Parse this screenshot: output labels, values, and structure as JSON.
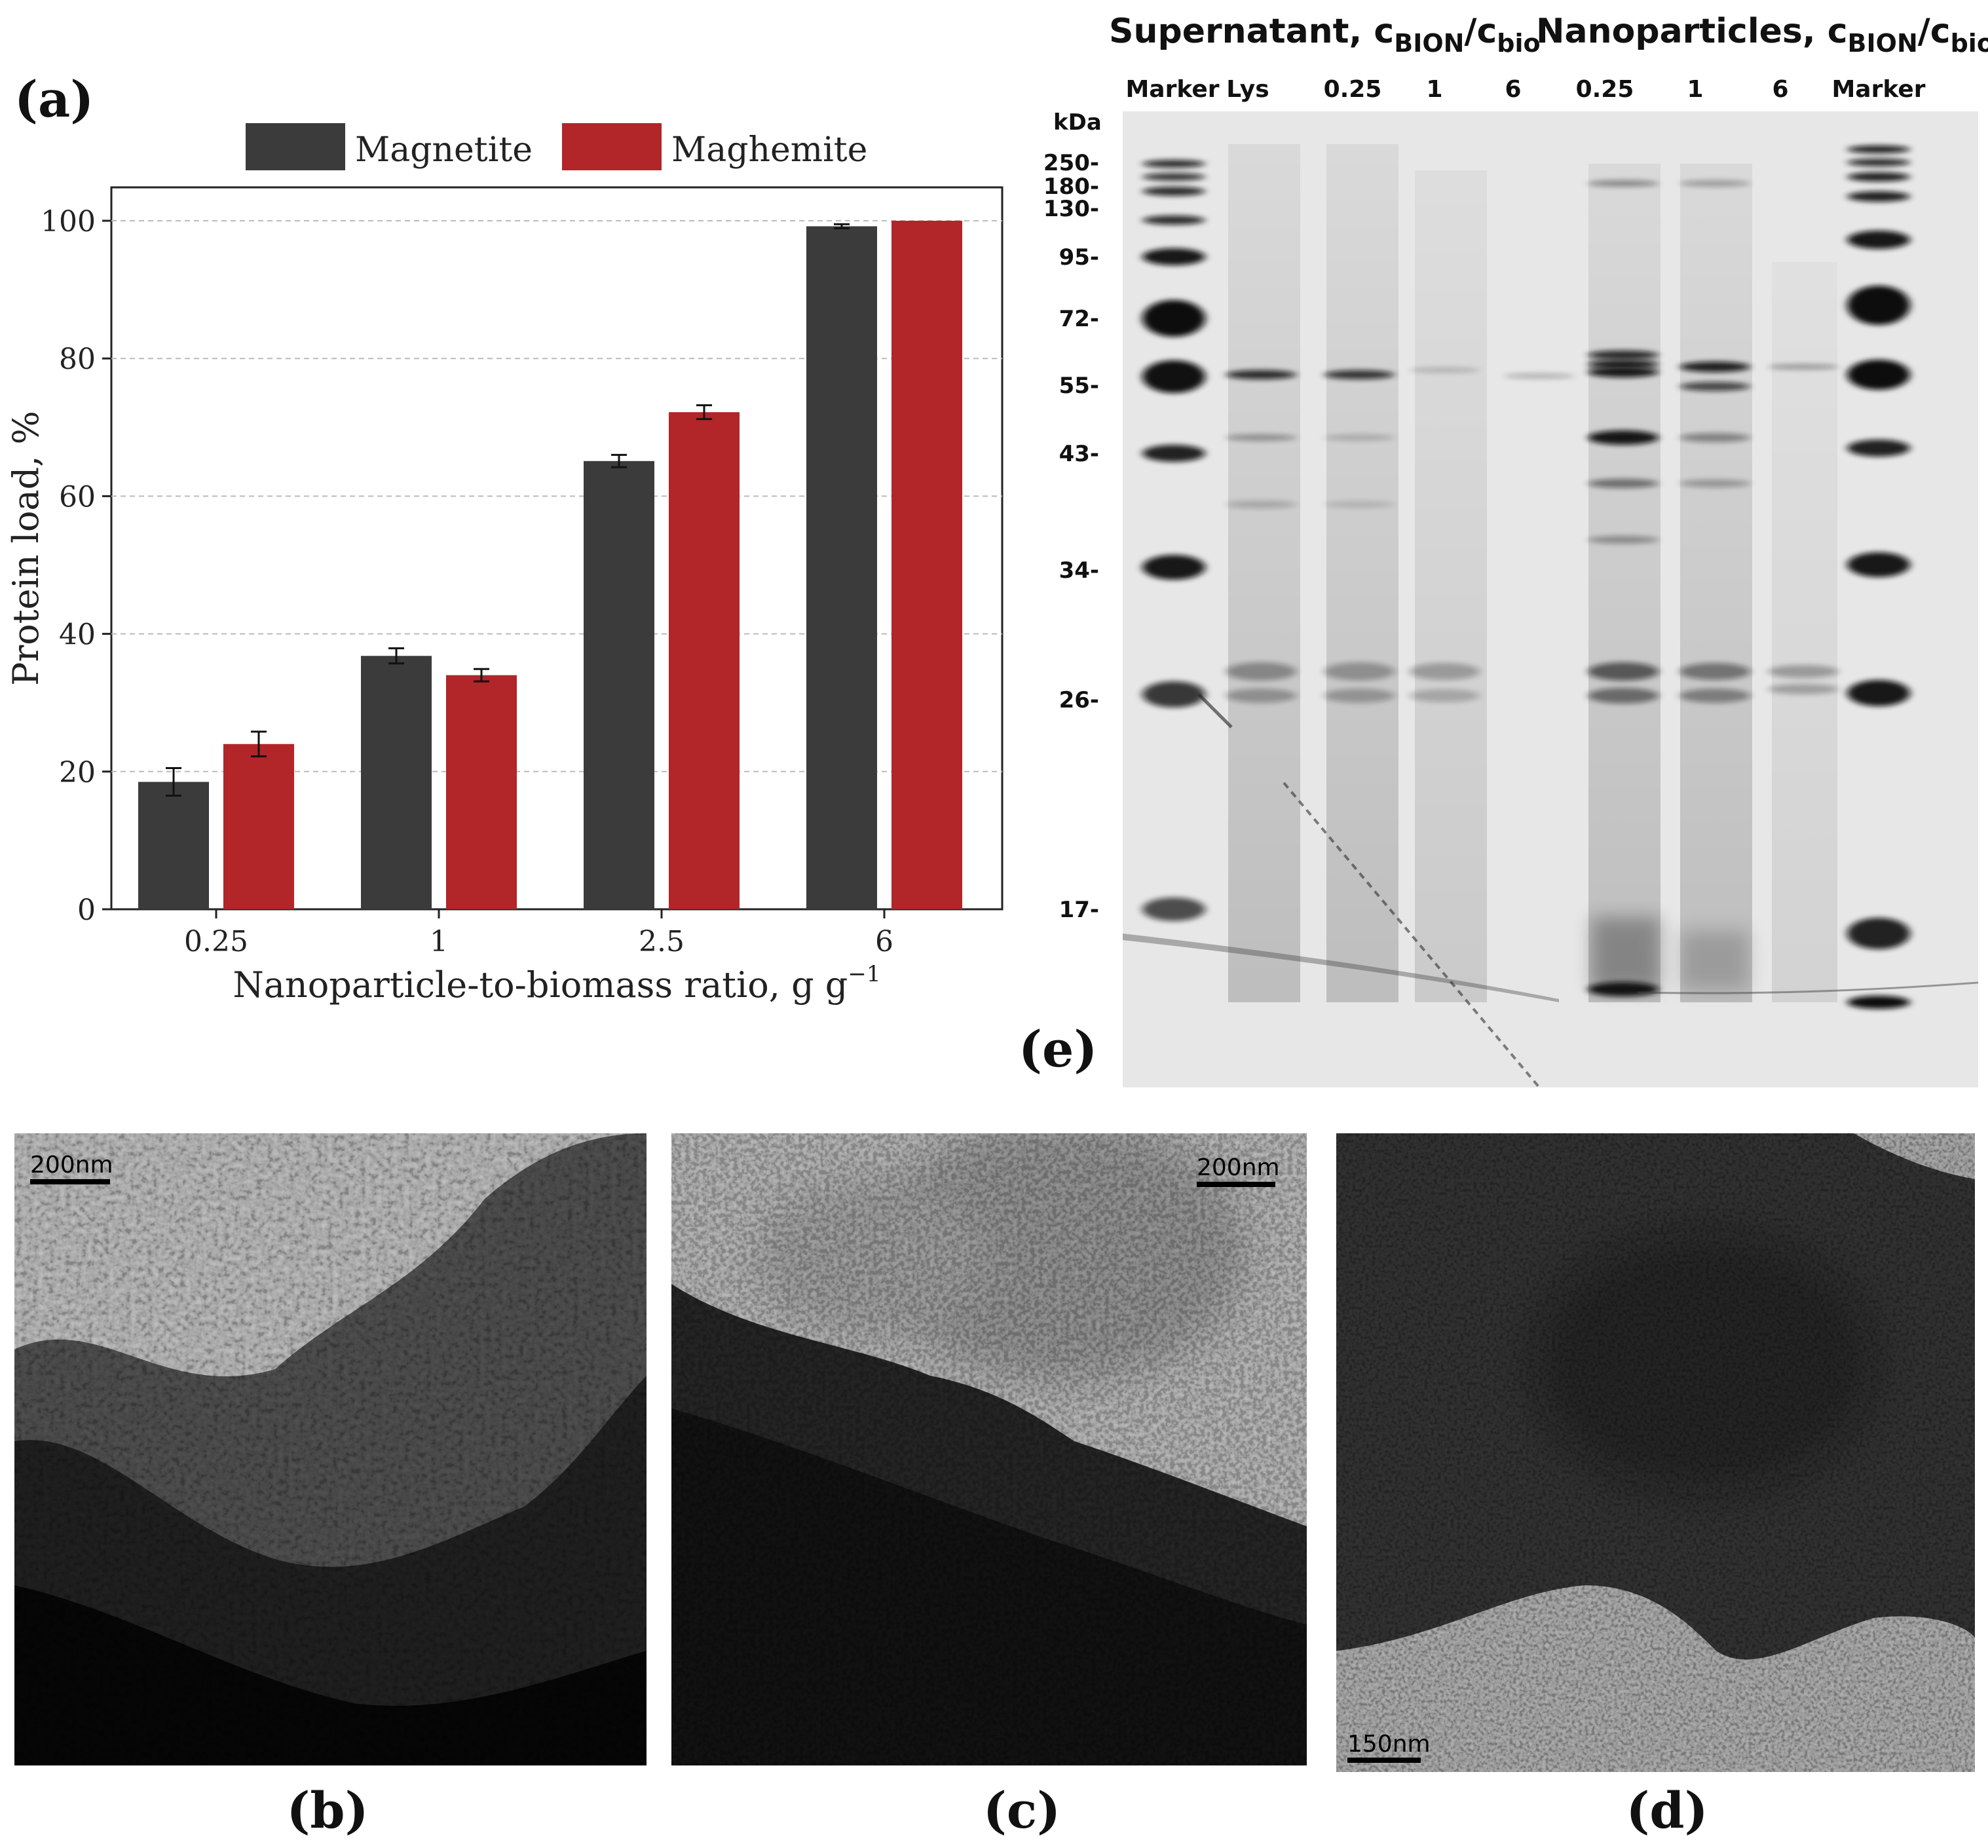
{
  "panel_labels": {
    "a": "(a)",
    "b": "(b)",
    "c": "(c)",
    "d": "(d)",
    "e": "(e)"
  },
  "chart_data": {
    "type": "bar",
    "categories": [
      "0.25",
      "1",
      "2.5",
      "6"
    ],
    "series": [
      {
        "name": "Magnetite",
        "values": [
          18.5,
          36.8,
          65.1,
          99.2
        ],
        "errors": [
          2.0,
          1.1,
          0.9,
          0.3
        ],
        "color": "#3b3b3b"
      },
      {
        "name": "Maghemite",
        "values": [
          24.0,
          34.0,
          72.2,
          100.0
        ],
        "errors": [
          1.8,
          0.9,
          1.0,
          0.0
        ],
        "color": "#b22528"
      }
    ],
    "xlabel": "Nanoparticle-to-biomass ratio, g g",
    "xlabel_sup": "−1",
    "ylabel": "Protein load, %",
    "ylim": [
      0,
      105
    ],
    "yticks": [
      0,
      20,
      40,
      60,
      80,
      100
    ],
    "grid": true,
    "legend_position": "top"
  },
  "gel": {
    "header_left_main": "Supernatant, c",
    "header_left_sub1": "BION",
    "header_left_slash": "/c",
    "header_left_sub2": "bio",
    "header_right_main": "Nanoparticles, c",
    "header_right_sub1": "BION",
    "header_right_slash": "/c",
    "header_right_sub2": "bio",
    "unit": "kDa",
    "lanes": [
      "Marker",
      "Lys",
      "0.25",
      "1",
      "6",
      "0.25",
      "1",
      "6",
      "Marker"
    ],
    "markers": [
      "250-",
      "180-",
      "130-",
      "95-",
      "72-",
      "55-",
      "43-",
      "34-",
      "26-",
      "17-"
    ]
  },
  "tem": {
    "b": {
      "scale": "200nm"
    },
    "c": {
      "scale": "200nm"
    },
    "d": {
      "scale": "150nm"
    }
  }
}
